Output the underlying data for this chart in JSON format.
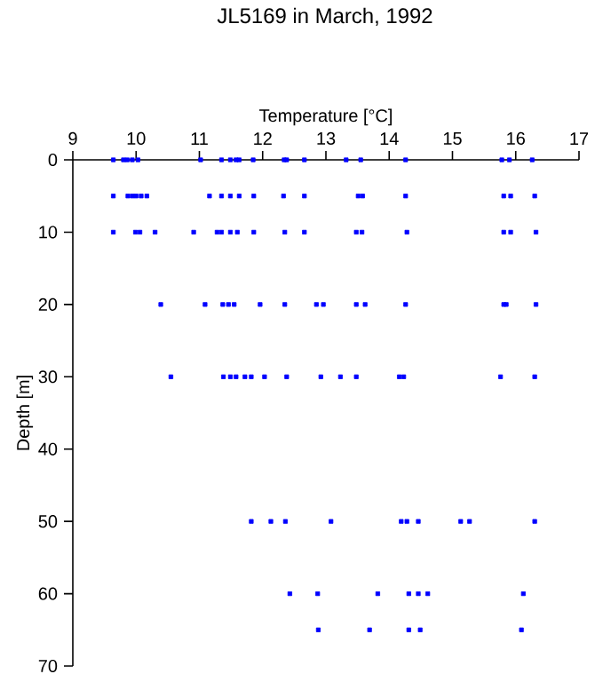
{
  "chart_data": {
    "type": "scatter",
    "title": "JL5169 in March, 1992",
    "xlabel": "Temperature [°C]",
    "ylabel": "Depth [m]",
    "xlim": [
      9,
      17
    ],
    "xticks": [
      9,
      10,
      11,
      12,
      13,
      14,
      15,
      16,
      17
    ],
    "ylim": [
      70,
      0
    ],
    "yticks": [
      0,
      10,
      20,
      30,
      40,
      50,
      60,
      70
    ],
    "marker": "square",
    "grid": false,
    "series": [
      {
        "color": "#0000ff",
        "x": [
          9.64,
          9.8,
          9.86,
          9.94,
          10.03,
          11.02,
          11.35,
          11.49,
          11.58,
          11.63,
          11.85,
          12.34,
          12.38,
          12.66,
          13.32,
          13.55,
          14.26,
          15.78,
          15.9,
          16.26,
          9.64,
          9.87,
          9.94,
          10.0,
          10.08,
          10.17,
          11.16,
          11.35,
          11.49,
          11.63,
          11.86,
          12.33,
          12.66,
          13.51,
          13.58,
          14.26,
          15.81,
          15.92,
          16.3,
          9.64,
          9.99,
          10.06,
          10.3,
          10.91,
          11.28,
          11.35,
          11.49,
          11.6,
          11.86,
          12.35,
          12.66,
          13.48,
          13.57,
          14.28,
          15.81,
          15.92,
          16.32,
          10.39,
          11.09,
          11.37,
          11.46,
          11.55,
          11.96,
          12.35,
          12.85,
          12.96,
          13.48,
          13.62,
          14.26,
          15.81,
          15.85,
          16.32,
          10.55,
          11.38,
          11.49,
          11.58,
          11.72,
          11.82,
          12.03,
          12.38,
          12.92,
          13.23,
          13.48,
          14.16,
          14.23,
          15.76,
          16.3,
          11.82,
          12.13,
          12.36,
          13.08,
          14.19,
          14.28,
          14.46,
          15.13,
          15.27,
          16.3,
          12.43,
          12.87,
          13.82,
          14.31,
          14.46,
          14.61,
          16.12,
          12.88,
          13.69,
          14.31,
          14.49,
          16.09
        ],
        "values": [
          0,
          0,
          0,
          0,
          0,
          0,
          0,
          0,
          0,
          0,
          0,
          0,
          0,
          0,
          0,
          0,
          0,
          0,
          0,
          0,
          5,
          5,
          5,
          5,
          5,
          5,
          5,
          5,
          5,
          5,
          5,
          5,
          5,
          5,
          5,
          5,
          5,
          5,
          5,
          10,
          10,
          10,
          10,
          10,
          10,
          10,
          10,
          10,
          10,
          10,
          10,
          10,
          10,
          10,
          10,
          10,
          10,
          20,
          20,
          20,
          20,
          20,
          20,
          20,
          20,
          20,
          20,
          20,
          20,
          20,
          20,
          20,
          30,
          30,
          30,
          30,
          30,
          30,
          30,
          30,
          30,
          30,
          30,
          30,
          30,
          30,
          30,
          50,
          50,
          50,
          50,
          50,
          50,
          50,
          50,
          50,
          50,
          60,
          60,
          60,
          60,
          60,
          60,
          60,
          65,
          65,
          65,
          65,
          65
        ]
      }
    ]
  }
}
